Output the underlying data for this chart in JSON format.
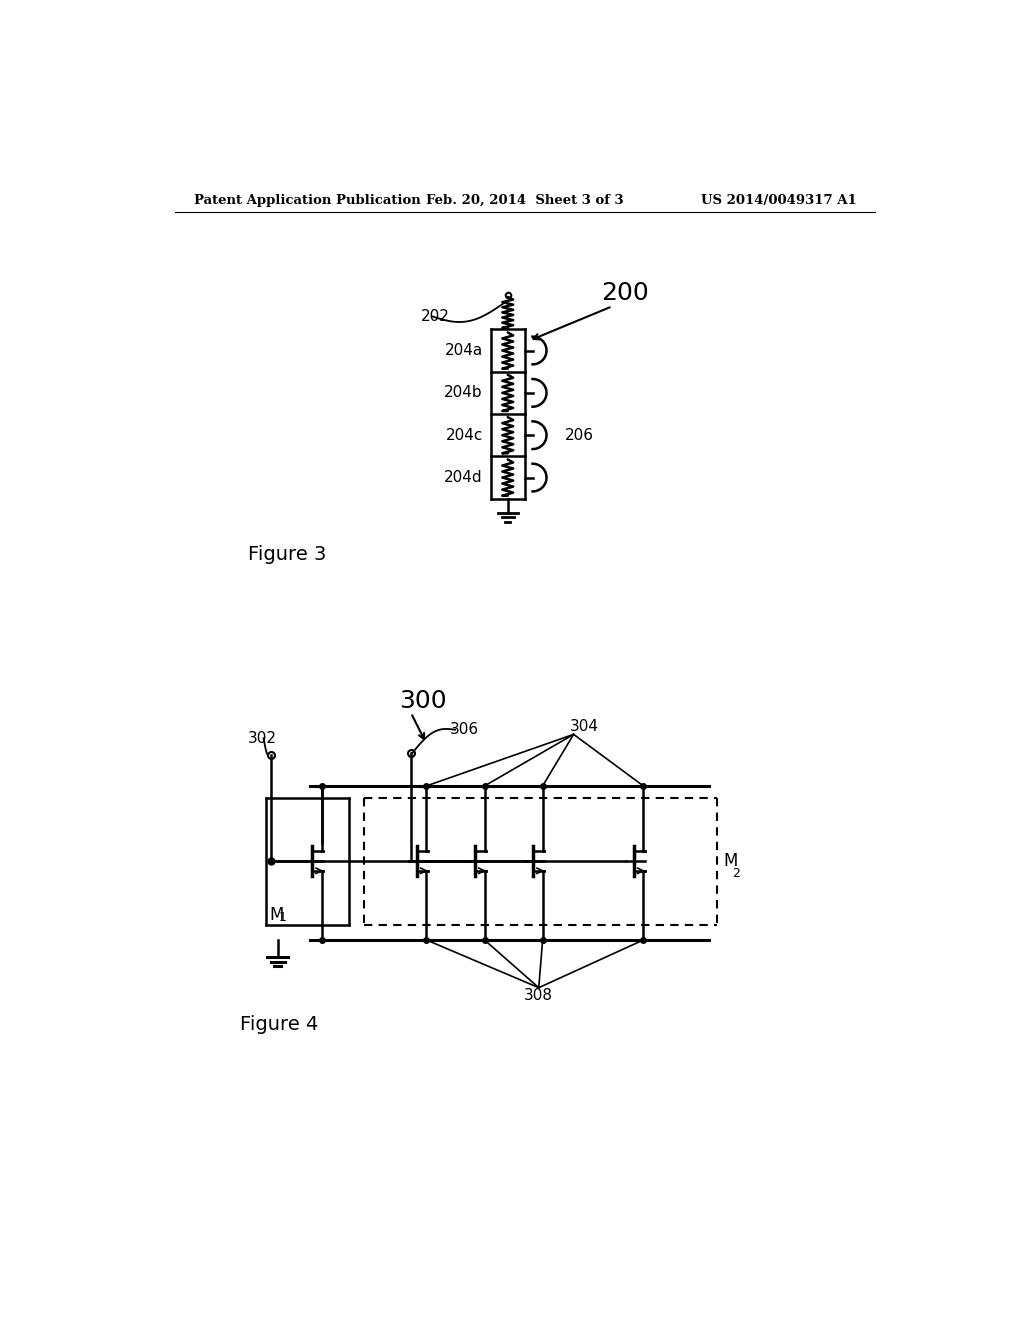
{
  "background_color": "#ffffff",
  "header_left": "Patent Application Publication",
  "header_center": "Feb. 20, 2014  Sheet 3 of 3",
  "header_right": "US 2014/0049317 A1",
  "fig3_label": "Figure 3",
  "fig4_label": "Figure 4",
  "fig3_title": "200",
  "fig3_input_label": "202",
  "fig3_resistor_labels": [
    "204a",
    "204b",
    "204c",
    "204d"
  ],
  "fig3_tap_label": "206",
  "fig4_title": "300",
  "fig4_input_label": "302",
  "fig4_label_306": "306",
  "fig4_label_304": "304",
  "fig4_label_308": "308",
  "fig4_label_M1": "M",
  "fig4_label_M1_sub": "1",
  "fig4_label_M2": "M",
  "fig4_label_M2_sub": "2"
}
